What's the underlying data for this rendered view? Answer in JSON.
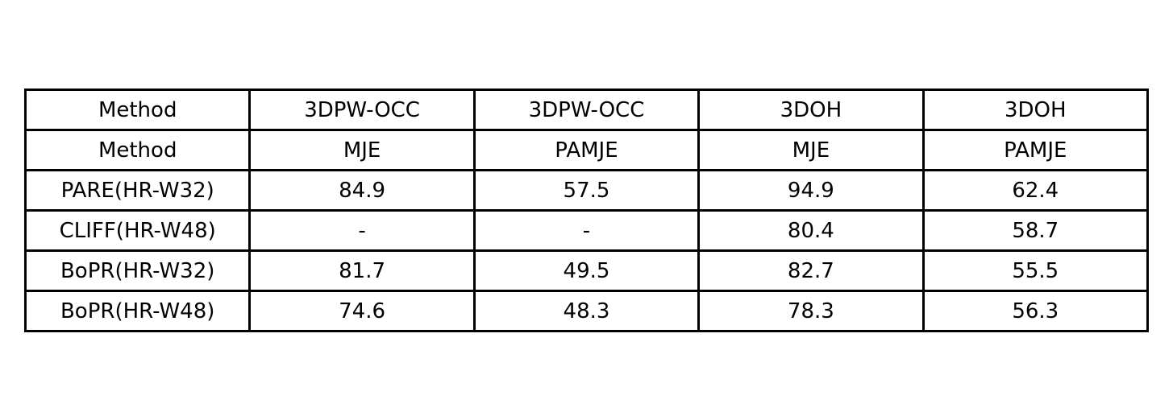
{
  "chart_data": {
    "type": "table",
    "header_rows": [
      [
        "Method",
        "3DPW-OCC",
        "3DPW-OCC",
        "3DOH",
        "3DOH"
      ],
      [
        "Method",
        "MJE",
        "PAMJE",
        "MJE",
        "PAMJE"
      ]
    ],
    "rows": [
      [
        "PARE(HR-W32)",
        "84.9",
        "57.5",
        "94.9",
        "62.4"
      ],
      [
        "CLIFF(HR-W48)",
        "-",
        "-",
        "80.4",
        "58.7"
      ],
      [
        "BoPR(HR-W32)",
        "81.7",
        "49.5",
        "82.7",
        "55.5"
      ],
      [
        "BoPR(HR-W48)",
        "74.6",
        "48.3",
        "78.3",
        "56.3"
      ]
    ]
  }
}
